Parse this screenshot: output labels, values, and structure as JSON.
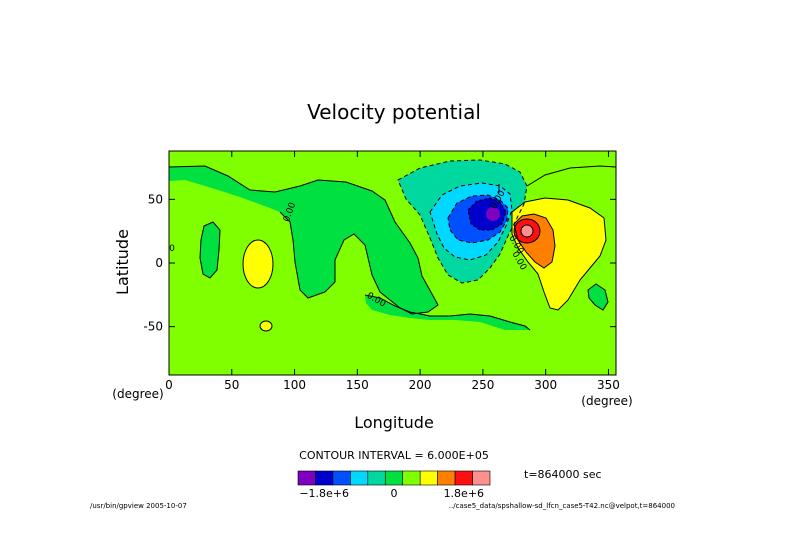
{
  "chart_data": {
    "type": "heatmap",
    "title": "Velocity potential",
    "xlabel": "Longitude",
    "ylabel": "Latitude",
    "x_unit": "(degree)",
    "y_unit": "(degree)",
    "xlim": [
      0,
      356
    ],
    "ylim": [
      -88,
      88
    ],
    "x_ticks": [
      0,
      50,
      100,
      150,
      200,
      250,
      300,
      350
    ],
    "y_ticks": [
      -50,
      0,
      50
    ],
    "contour_interval_label": "CONTOUR INTERVAL = 6.000E+05",
    "time_label": "t=864000 sec",
    "colorbar": {
      "colors": [
        "#7f00bf",
        "#0000cc",
        "#0050ff",
        "#00d8ff",
        "#00d8a0",
        "#00e040",
        "#80ff00",
        "#ffff00",
        "#ff8000",
        "#ff1010",
        "#ff9090"
      ],
      "tick_labels": [
        {
          "value": -1800000,
          "label": "−1.8e+6"
        },
        {
          "value": 0,
          "label": "0"
        },
        {
          "value": 1800000,
          "label": "1.8e+6"
        }
      ]
    },
    "contour_labels": [
      "0.00",
      "0.00",
      "0.00",
      "0.00",
      "0.00",
      "0"
    ],
    "features": [
      {
        "kind": "minimum",
        "lon": 256,
        "lat": 38,
        "value_note": "below -3.0e+6"
      },
      {
        "kind": "maximum",
        "lon": 285,
        "lat": 24,
        "value_note": "above 3.0e+6"
      }
    ]
  },
  "footer": {
    "left": "/usr/bin/gpview  2005-10-07",
    "right": "../case5_data/spshallow-sd_lfcn_case5-T42.nc@velpot,t=864000"
  }
}
